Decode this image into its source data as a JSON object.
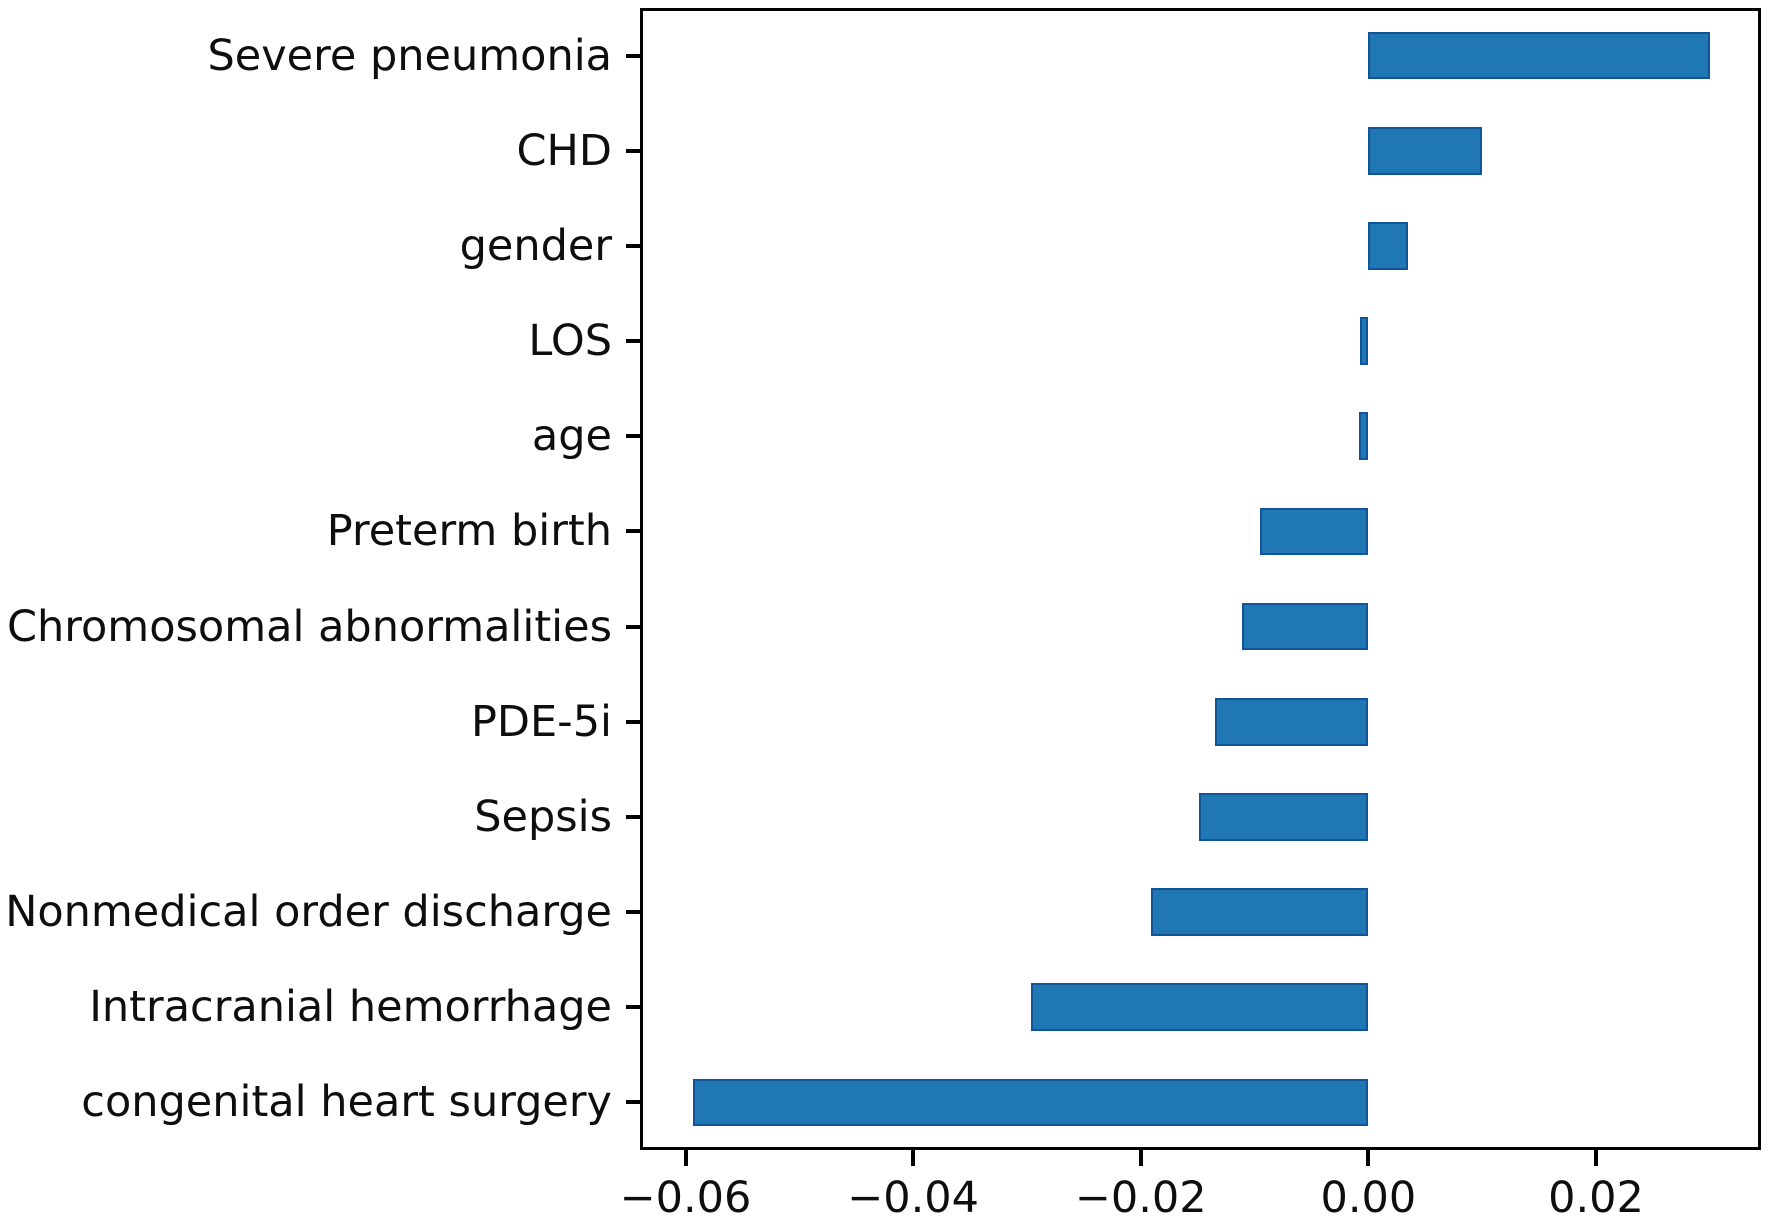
{
  "chart_data": {
    "type": "bar",
    "orientation": "horizontal",
    "title": "",
    "xlabel": "",
    "ylabel": "",
    "grid": false,
    "legend": "none",
    "categories": [
      "Severe pneumonia",
      "CHD",
      "gender",
      "LOS",
      "age",
      "Preterm birth",
      "Chromosomal abnormalities",
      "PDE-5i",
      "Sepsis",
      "Nonmedical order discharge",
      "Intracranial hemorrhage",
      "congenital heart surgery"
    ],
    "values": [
      0.03,
      0.01,
      0.0035,
      -0.0007,
      -0.0008,
      -0.0095,
      -0.0111,
      -0.0135,
      -0.0149,
      -0.0191,
      -0.0296,
      -0.0593
    ],
    "xlim": [
      -0.064,
      0.0345
    ],
    "x_ticks": [
      -0.06,
      -0.04,
      -0.02,
      0.0,
      0.02
    ],
    "x_tick_labels": [
      "−0.06",
      "−0.04",
      "−0.02",
      "0.00",
      "0.02"
    ],
    "bar_fill_color": "#1f77b4",
    "bar_edge_color": "#11549c",
    "axis_color": "#000000",
    "background_color": "#ffffff",
    "bar_width_fraction": 0.5
  }
}
